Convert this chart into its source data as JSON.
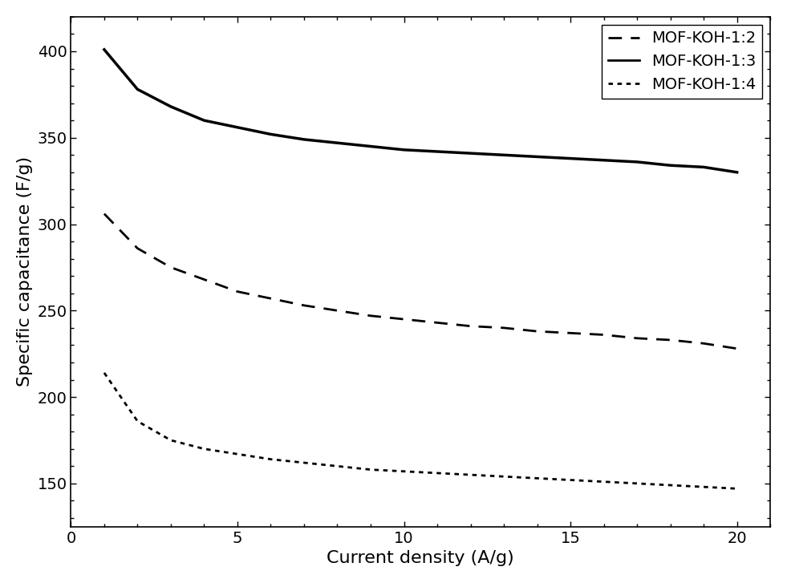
{
  "title": "",
  "xlabel": "Current density (A/g)",
  "ylabel": "Specific capacitance (F/g)",
  "xlim": [
    0,
    21
  ],
  "ylim": [
    125,
    420
  ],
  "xticks": [
    0,
    5,
    10,
    15,
    20
  ],
  "yticks": [
    150,
    200,
    250,
    300,
    350,
    400
  ],
  "background_color": "#ffffff",
  "series": [
    {
      "label": "MOF-KOH-1:2",
      "linestyle": "dashed",
      "linewidth": 2.0,
      "color": "#000000",
      "x": [
        1,
        2,
        3,
        4,
        5,
        6,
        7,
        8,
        9,
        10,
        11,
        12,
        13,
        14,
        15,
        16,
        17,
        18,
        19,
        20
      ],
      "y": [
        306,
        286,
        275,
        268,
        261,
        257,
        253,
        250,
        247,
        245,
        243,
        241,
        240,
        238,
        237,
        236,
        234,
        233,
        231,
        228
      ]
    },
    {
      "label": "MOF-KOH-1:3",
      "linestyle": "solid",
      "linewidth": 2.5,
      "color": "#000000",
      "x": [
        1,
        2,
        3,
        4,
        5,
        6,
        7,
        8,
        9,
        10,
        11,
        12,
        13,
        14,
        15,
        16,
        17,
        18,
        19,
        20
      ],
      "y": [
        401,
        378,
        368,
        360,
        356,
        352,
        349,
        347,
        345,
        343,
        342,
        341,
        340,
        339,
        338,
        337,
        336,
        334,
        333,
        330
      ]
    },
    {
      "label": "MOF-KOH-1:4",
      "linestyle": "dotted",
      "linewidth": 2.0,
      "color": "#000000",
      "x": [
        1,
        2,
        3,
        4,
        5,
        6,
        7,
        8,
        9,
        10,
        11,
        12,
        13,
        14,
        15,
        16,
        17,
        18,
        19,
        20
      ],
      "y": [
        214,
        186,
        175,
        170,
        167,
        164,
        162,
        160,
        158,
        157,
        156,
        155,
        154,
        153,
        152,
        151,
        150,
        149,
        148,
        147
      ]
    }
  ],
  "legend_loc": "upper right",
  "legend_fontsize": 14,
  "axis_fontsize": 16,
  "tick_fontsize": 14,
  "figure_facecolor": "#ffffff"
}
